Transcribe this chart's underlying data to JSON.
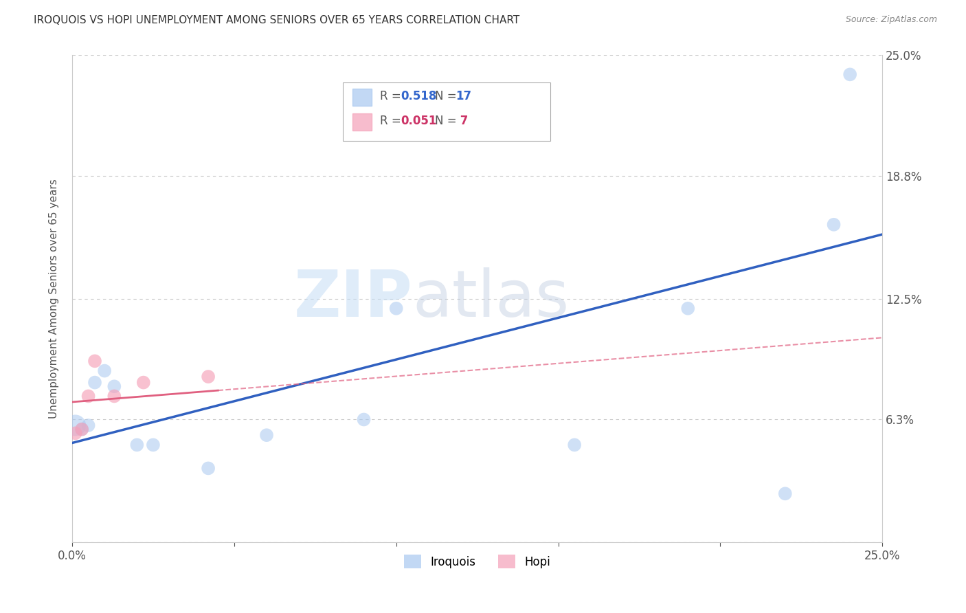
{
  "title": "IROQUOIS VS HOPI UNEMPLOYMENT AMONG SENIORS OVER 65 YEARS CORRELATION CHART",
  "source": "Source: ZipAtlas.com",
  "ylabel": "Unemployment Among Seniors over 65 years",
  "xlim": [
    0,
    0.25
  ],
  "ylim": [
    0,
    0.25
  ],
  "xticks": [
    0.0,
    0.05,
    0.1,
    0.15,
    0.2,
    0.25
  ],
  "yticks": [
    0.0,
    0.063,
    0.125,
    0.188,
    0.25
  ],
  "ytick_labels": [
    "",
    "6.3%",
    "12.5%",
    "18.8%",
    "25.0%"
  ],
  "xtick_labels": [
    "0.0%",
    "",
    "",
    "",
    "",
    "25.0%"
  ],
  "iroquois_x": [
    0.001,
    0.003,
    0.005,
    0.007,
    0.01,
    0.013,
    0.02,
    0.025,
    0.042,
    0.06,
    0.09,
    0.1,
    0.155,
    0.19,
    0.22,
    0.235,
    0.24
  ],
  "iroquois_y": [
    0.06,
    0.058,
    0.06,
    0.082,
    0.088,
    0.08,
    0.05,
    0.05,
    0.038,
    0.055,
    0.063,
    0.12,
    0.05,
    0.12,
    0.025,
    0.163,
    0.24
  ],
  "iroquois_sizes": [
    500,
    200,
    200,
    200,
    200,
    200,
    200,
    200,
    200,
    200,
    200,
    200,
    200,
    200,
    200,
    200,
    200
  ],
  "hopi_x": [
    0.001,
    0.003,
    0.005,
    0.007,
    0.013,
    0.022,
    0.042
  ],
  "hopi_y": [
    0.056,
    0.058,
    0.075,
    0.093,
    0.075,
    0.082,
    0.085
  ],
  "hopi_sizes": [
    200,
    200,
    200,
    200,
    200,
    200,
    200
  ],
  "iroquois_color": "#a8c8f0",
  "hopi_color": "#f5a0b8",
  "iroquois_line_color": "#3060c0",
  "hopi_line_color": "#e06080",
  "iroquois_trendline_x": [
    0.0,
    0.25
  ],
  "iroquois_trendline_y": [
    0.051,
    0.158
  ],
  "hopi_trendline_x": [
    0.0,
    0.25
  ],
  "hopi_trendline_y": [
    0.072,
    0.105
  ],
  "iroquois_r": "0.518",
  "iroquois_n": "17",
  "hopi_r": "0.051",
  "hopi_n": "7",
  "watermark_zip": "ZIP",
  "watermark_atlas": "atlas",
  "background_color": "#ffffff",
  "grid_color": "#cccccc"
}
